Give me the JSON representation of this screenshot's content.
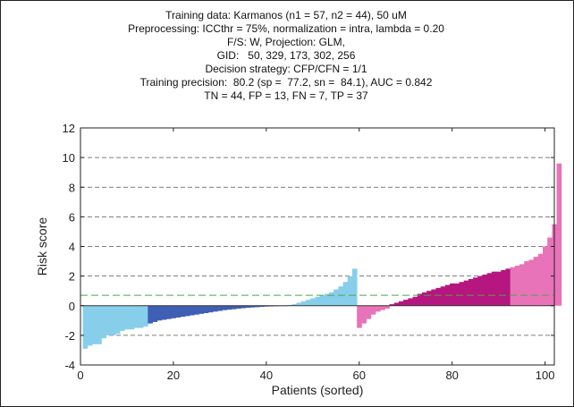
{
  "chart_data": {
    "type": "bar",
    "title_lines": [
      "Training data: Karmanos (n1 = 57, n2 = 44), 50 uM",
      "Preprocessing: ICCthr = 75%, normalization = intra, lambda = 0.20",
      "F/S: W, Projection: GLM,",
      "GID:   50, 329, 173, 302, 256",
      "Decision strategy: CFP/CFN = 1/1",
      "Training precision:  80.2 (sp =  77.2, sn =  84.1), AUC = 0.842",
      "TN = 44, FP = 13, FN = 7, TP = 37"
    ],
    "xlabel": "Patients (sorted)",
    "ylabel": "Risk score",
    "xlim": [
      0,
      102
    ],
    "ylim": [
      -4,
      12
    ],
    "xticks": [
      0,
      20,
      40,
      60,
      80,
      100
    ],
    "yticks": [
      -4,
      -2,
      0,
      2,
      4,
      6,
      8,
      10,
      12
    ],
    "grid": "horizontal dashed",
    "threshold": 0.7,
    "colors": {
      "class1_below": "#87ceeb",
      "class1_above": "#3f5fb5",
      "class2_below": "#e873b8",
      "class2_above": "#b5167f",
      "threshold_line": "#4aa84a"
    },
    "series": [
      {
        "group": 1,
        "sections": [
          {
            "color_key": "class1_below",
            "values": [
              -2.9,
              -2.7,
              -2.6,
              -2.6,
              -2.2,
              -2.0,
              -2.0,
              -1.9,
              -1.7,
              -1.6,
              -1.6,
              -1.5,
              -1.5,
              -1.4
            ]
          },
          {
            "color_key": "class1_above",
            "values": [
              -1.2,
              -1.1,
              -1.0,
              -0.95,
              -0.9,
              -0.85,
              -0.8,
              -0.75,
              -0.7,
              -0.65,
              -0.6,
              -0.55,
              -0.5,
              -0.45,
              -0.4,
              -0.35,
              -0.3,
              -0.27,
              -0.24,
              -0.2,
              -0.17,
              -0.14,
              -0.12,
              -0.1,
              -0.08,
              -0.06,
              -0.05,
              -0.04,
              -0.03,
              -0.02
            ]
          },
          {
            "color_key": "class1_below",
            "values": [
              0.05,
              0.1,
              0.2,
              0.3,
              0.4,
              0.5,
              0.6,
              0.7,
              0.8,
              0.9,
              1.1,
              1.3,
              1.6,
              2.0,
              2.5
            ]
          }
        ]
      },
      {
        "group": 2,
        "sections": [
          {
            "color_key": "class2_below",
            "values": [
              -1.5,
              -1.2,
              -0.9,
              -0.6,
              -0.4,
              -0.3,
              -0.2
            ]
          },
          {
            "color_key": "class2_above",
            "values": [
              0.1,
              0.2,
              0.3,
              0.4,
              0.5,
              0.6,
              0.8,
              0.9,
              1.0,
              1.1,
              1.2,
              1.3,
              1.4,
              1.5,
              1.5,
              1.6,
              1.7,
              1.8,
              1.9,
              2.0,
              2.1,
              2.2,
              2.3,
              2.3,
              2.4,
              2.5
            ]
          },
          {
            "color_key": "class2_below",
            "values": [
              2.6,
              2.7,
              2.8,
              3.0,
              3.1,
              3.3,
              3.5,
              4.0,
              4.6,
              5.5,
              9.6
            ]
          }
        ]
      }
    ]
  }
}
